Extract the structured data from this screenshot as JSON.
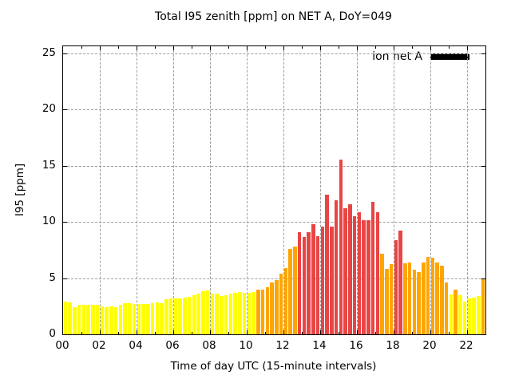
{
  "title": "Total I95 zenith [ppm] on NET A, DoY=049",
  "legend": {
    "series_label": "ion net A",
    "swatch_color": "#000000",
    "position": "top-right"
  },
  "axes": {
    "xlabel": "Time of day UTC (15-minute intervals)",
    "ylabel": "I95 [ppm]",
    "x_tick_labels": [
      "00",
      "02",
      "04",
      "06",
      "08",
      "10",
      "12",
      "14",
      "16",
      "18",
      "20",
      "22"
    ],
    "y_tick_labels": [
      "0",
      "5",
      "10",
      "15",
      "20",
      "25"
    ]
  },
  "chart_data": {
    "type": "bar",
    "title": "Total I95 zenith [ppm] on NET A, DoY=049",
    "xlabel": "Time of day UTC (15-minute intervals)",
    "ylabel": "I95 [ppm]",
    "series_name": "ion net A",
    "x_start_hour": 0,
    "x_step_minutes": 15,
    "xlim_hours": [
      0,
      23
    ],
    "ylim": [
      0,
      25
    ],
    "grid": true,
    "legend_position": "top-right",
    "x_major_tick_hours": [
      0,
      2,
      4,
      6,
      8,
      10,
      12,
      14,
      16,
      18,
      20,
      22
    ],
    "y_major_ticks": [
      0,
      5,
      10,
      15,
      20,
      25
    ],
    "bar_colors": {
      "low": "#ffff00",
      "mid": "#ffa500",
      "high": "#e84545"
    },
    "color_thresholds": {
      "mid_min": 4,
      "high_min": 8
    },
    "values": [
      2.9,
      2.85,
      2.4,
      2.6,
      2.65,
      2.65,
      2.65,
      2.65,
      2.5,
      2.4,
      2.5,
      2.45,
      2.6,
      2.75,
      2.8,
      2.7,
      2.7,
      2.7,
      2.7,
      2.75,
      2.85,
      2.8,
      3.1,
      3.2,
      3.2,
      3.2,
      3.3,
      3.35,
      3.5,
      3.6,
      3.85,
      3.9,
      3.6,
      3.6,
      3.4,
      3.45,
      3.65,
      3.7,
      3.8,
      3.7,
      3.7,
      3.75,
      4.0,
      4.0,
      4.2,
      4.6,
      4.8,
      5.4,
      5.9,
      7.6,
      7.8,
      9.1,
      8.65,
      9.1,
      9.8,
      8.75,
      9.6,
      12.45,
      9.6,
      11.95,
      15.55,
      11.2,
      11.55,
      10.5,
      10.9,
      10.15,
      10.15,
      11.8,
      10.9,
      7.2,
      5.85,
      6.25,
      8.35,
      9.25,
      6.35,
      6.4,
      5.75,
      5.55,
      6.4,
      6.9,
      6.8,
      6.4,
      6.1,
      4.65,
      3.55,
      4.0,
      3.5,
      2.9,
      3.2,
      3.25,
      3.4,
      5.0
    ]
  }
}
